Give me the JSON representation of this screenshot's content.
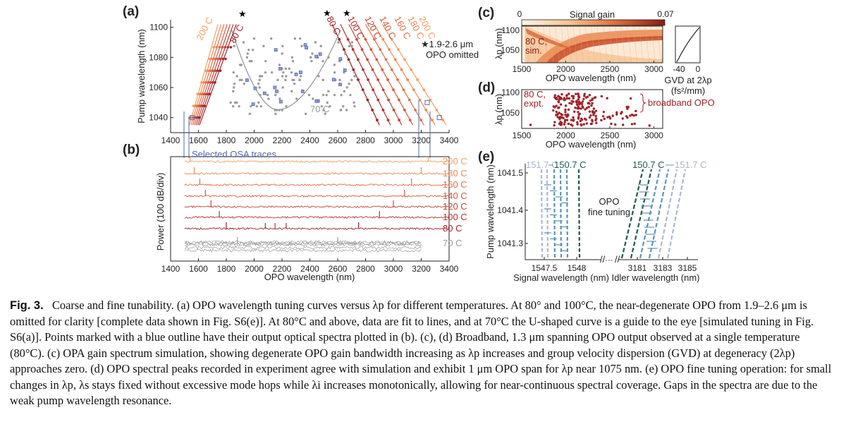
{
  "panels": {
    "a": {
      "label": "(a)",
      "ylabel": "Pump wavelength (nm)",
      "xticks": [
        "1400",
        "1600",
        "1800",
        "2000",
        "2200",
        "2400",
        "2600",
        "2800",
        "3000",
        "3200",
        "3400"
      ],
      "yticks": [
        "1040",
        "1060",
        "1080",
        "1100"
      ],
      "temps_left": [
        "200 C",
        "80 C"
      ],
      "temps_right": [
        "80 C",
        "100 C",
        "120 C",
        "140 C",
        "160 C",
        "180 C",
        "200 C"
      ],
      "star": "★",
      "note1": "★1.9-2.6 μm",
      "note2": "OPO omitted",
      "curve_label": "70 C"
    },
    "b": {
      "label": "(b)",
      "ylabel": "Power (100 dB/div)",
      "xlabel": "OPO wavelength (nm)",
      "xticks": [
        "1400",
        "1600",
        "1800",
        "2000",
        "2200",
        "2400",
        "2600",
        "2800",
        "3000",
        "3200",
        "3400"
      ],
      "selected": "Selected OSA traces",
      "traces": [
        "200 C",
        "180 C",
        "160 C",
        "140 C",
        "120 C",
        "100 C",
        "80 C",
        "70 C"
      ]
    },
    "c": {
      "label": "(c)",
      "cbar_title": "Signal gain",
      "cbar_min": "0",
      "cbar_max": "0.07",
      "ylabel": "λp (nm)",
      "yticks": [
        "1100",
        "1050"
      ],
      "xticks": [
        "1500",
        "2000",
        "2500",
        "3000"
      ],
      "xlabel": "OPO wavelength (nm)",
      "sim1": "80 C,",
      "sim2": "sim.",
      "gvd_ticks": [
        "-40",
        "0"
      ],
      "gvd1": "GVD at 2λp",
      "gvd2": "(fs²/mm)"
    },
    "d": {
      "label": "(d)",
      "ylabel": "λp (nm)",
      "yticks": [
        "1100",
        "1050"
      ],
      "xticks": [
        "1500",
        "2000",
        "2500",
        "3000"
      ],
      "xlabel": "OPO wavelength (nm)",
      "expt1": "80 C,",
      "expt2": "expt.",
      "broadband": "broadband OPO"
    },
    "e": {
      "label": "(e)",
      "ylabel": "Pump wavelength (nm)",
      "yticks": [
        "1041.5",
        "1041.4",
        "1041.3"
      ],
      "sig_ticks": [
        "1547.5",
        "1548"
      ],
      "idl_ticks": [
        "3181",
        "3183",
        "3185"
      ],
      "dots": "···",
      "sig_xlabel": "Signal wavelength (nm)",
      "idl_xlabel": "Idler wavelength (nm)",
      "t1": "151.7 C",
      "t2": "150.7 C",
      "fine1": "OPO",
      "fine2": "fine tuning"
    }
  },
  "caption": {
    "label": "Fig. 3.",
    "text": "Coarse and fine tunability. (a) OPO wavelength tuning curves versus λp for different temperatures. At 80° and 100°C, the near-degenerate OPO from 1.9–2.6 μm is omitted for clarity [complete data shown in Fig. S6(e)]. At 80°C and above, data are fit to lines, and at 70°C the U-shaped curve is a guide to the eye [simulated tuning in Fig. S6(a)]. Points marked with a blue outline have their output optical spectra plotted in (b). (c), (d) Broadband, 1.3 μm spanning OPO output observed at a single temperature (80°C). (c) OPA gain spectrum simulation, showing degenerate OPO gain bandwidth increasing as λp increases and group velocity dispersion (GVD) at degeneracy (2λp) approaches zero. (d) OPO spectral peaks recorded in experiment agree with simulation and exhibit 1 μm OPO span for λp near 1075 nm. (e) OPO fine tuning operation: for small changes in λp, λs stays fixed without excessive mode hops while λi increases monotonically, allowing for near-continuous spectral coverage. Gaps in the spectra are due to the weak pump wavelength resonance."
  },
  "colors": {
    "t200": "#f3a062",
    "t180": "#ec8a55",
    "t160": "#e07048",
    "t140": "#d55a3e",
    "t120": "#c7453a",
    "t100": "#b33232",
    "t80": "#9e2228",
    "t70": "#9a9a9a",
    "blue": "#5568a8",
    "e_light": "#a9b7d2",
    "e_mid": "#5b94b2",
    "e_dark": "#1c5a4e"
  }
}
